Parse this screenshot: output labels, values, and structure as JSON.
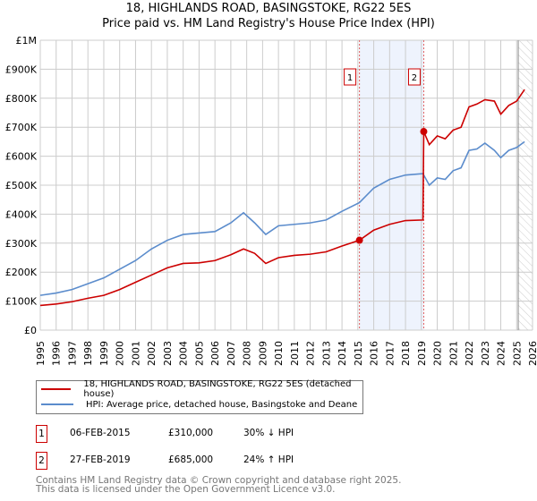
{
  "title_line1": "18, HIGHLANDS ROAD, BASINGSTOKE, RG22 5ES",
  "title_line2": "Price paid vs. HM Land Registry's House Price Index (HPI)",
  "chart_data": {
    "type": "line",
    "ylim": [
      0,
      1000000
    ],
    "xlim": [
      1995,
      2026
    ],
    "y_ticks": [
      {
        "v": 0,
        "label": "£0"
      },
      {
        "v": 100000,
        "label": "£100K"
      },
      {
        "v": 200000,
        "label": "£200K"
      },
      {
        "v": 300000,
        "label": "£300K"
      },
      {
        "v": 400000,
        "label": "£400K"
      },
      {
        "v": 500000,
        "label": "£500K"
      },
      {
        "v": 600000,
        "label": "£600K"
      },
      {
        "v": 700000,
        "label": "£700K"
      },
      {
        "v": 800000,
        "label": "£800K"
      },
      {
        "v": 900000,
        "label": "£900K"
      },
      {
        "v": 1000000,
        "label": "£1M"
      }
    ],
    "x_ticks": [
      "1995",
      "1996",
      "1997",
      "1998",
      "1999",
      "2000",
      "2001",
      "2002",
      "2003",
      "2004",
      "2005",
      "2006",
      "2007",
      "2008",
      "2009",
      "2010",
      "2011",
      "2012",
      "2013",
      "2014",
      "2015",
      "2016",
      "2017",
      "2018",
      "2019",
      "2020",
      "2021",
      "2022",
      "2023",
      "2024",
      "2025",
      "2026"
    ],
    "grid": true,
    "series": [
      {
        "name": "18, HIGHLANDS ROAD, BASINGSTOKE, RG22 5ES (detached house)",
        "color": "#cc0000",
        "x": [
          1995,
          1996,
          1997,
          1998,
          1999,
          2000,
          2001,
          2002,
          2003,
          2004,
          2005,
          2006,
          2007,
          2007.8,
          2008.5,
          2009.2,
          2010,
          2011,
          2012,
          2013,
          2014,
          2015.1,
          2016,
          2017,
          2018,
          2019.1,
          2019.15,
          2019.5,
          2020,
          2020.5,
          2021,
          2021.5,
          2022,
          2022.5,
          2023,
          2023.6,
          2024,
          2024.5,
          2025,
          2025.5
        ],
        "y": [
          85000,
          90000,
          98000,
          110000,
          120000,
          140000,
          165000,
          190000,
          215000,
          230000,
          232000,
          240000,
          260000,
          280000,
          265000,
          230000,
          250000,
          258000,
          262000,
          270000,
          290000,
          310000,
          345000,
          365000,
          378000,
          380000,
          685000,
          640000,
          670000,
          660000,
          690000,
          700000,
          770000,
          780000,
          795000,
          790000,
          745000,
          775000,
          790000,
          830000
        ]
      },
      {
        "name": "HPI: Average price, detached house, Basingstoke and Deane",
        "color": "#5b8ccc",
        "x": [
          1995,
          1996,
          1997,
          1998,
          1999,
          2000,
          2001,
          2002,
          2003,
          2004,
          2005,
          2006,
          2007,
          2007.8,
          2008.5,
          2009.2,
          2010,
          2011,
          2012,
          2013,
          2014,
          2015.1,
          2016,
          2017,
          2018,
          2019.1,
          2019.5,
          2020,
          2020.5,
          2021,
          2021.5,
          2022,
          2022.5,
          2023,
          2023.6,
          2024,
          2024.5,
          2025,
          2025.5
        ],
        "y": [
          120000,
          128000,
          140000,
          160000,
          180000,
          210000,
          240000,
          280000,
          310000,
          330000,
          335000,
          340000,
          370000,
          405000,
          370000,
          330000,
          360000,
          365000,
          370000,
          380000,
          410000,
          440000,
          490000,
          520000,
          535000,
          540000,
          500000,
          525000,
          520000,
          550000,
          560000,
          620000,
          625000,
          645000,
          620000,
          595000,
          620000,
          630000,
          650000
        ]
      }
    ],
    "annotations": [
      {
        "label": "1",
        "x": 2015.1,
        "y": 310000
      },
      {
        "label": "2",
        "x": 2019.15,
        "y": 685000
      }
    ],
    "shaded_range": [
      2015.1,
      2019.15
    ],
    "hatched_from": 2025.1
  },
  "legend": {
    "item1": "18, HIGHLANDS ROAD, BASINGSTOKE, RG22 5ES (detached house)",
    "item2": "HPI: Average price, detached house, Basingstoke and Deane"
  },
  "transactions": [
    {
      "num": "1",
      "date": "06-FEB-2015",
      "price": "£310,000",
      "hpi": "30% ↓ HPI"
    },
    {
      "num": "2",
      "date": "27-FEB-2019",
      "price": "£685,000",
      "hpi": "24% ↑ HPI"
    }
  ],
  "footer": {
    "line1": "Contains HM Land Registry data © Crown copyright and database right 2025.",
    "line2": "This data is licensed under the Open Government Licence v3.0."
  }
}
